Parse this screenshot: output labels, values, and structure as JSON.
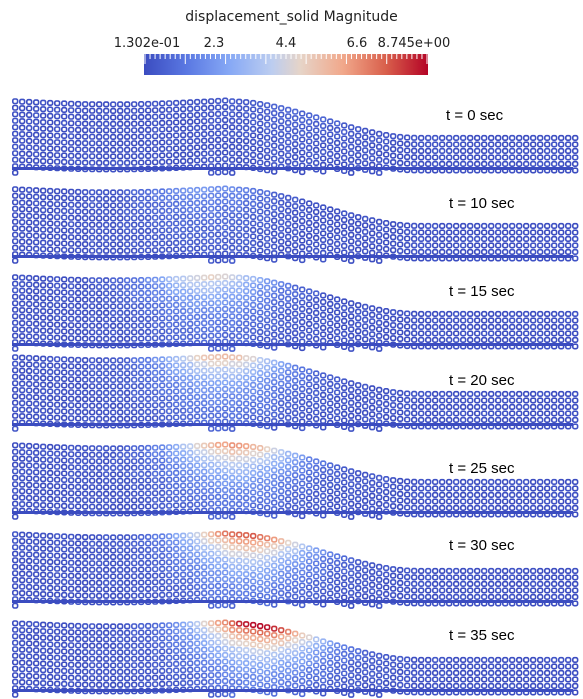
{
  "legend": {
    "title": "displacement_solid Magnitude",
    "min_label": "1.302e-01",
    "tick_2_3": "2.3",
    "tick_4_4": "4.4",
    "tick_6_6": "6.6",
    "max_label": "8.745e+00",
    "min": 0.1302,
    "max": 8.745,
    "colors": {
      "low": "#3b4cc0",
      "mid": "#dddddd",
      "high": "#b40426"
    }
  },
  "panels": [
    {
      "label": "t = 0 sec",
      "peak": 0.9,
      "peak_x": 0.5,
      "ridge": 0.05
    },
    {
      "label": "t = 10 sec",
      "peak": 2.2,
      "peak_x": 0.34,
      "ridge": 0.15
    },
    {
      "label": "t = 15 sec",
      "peak": 4.8,
      "peak_x": 0.35,
      "ridge": 0.25
    },
    {
      "label": "t = 20 sec",
      "peak": 5.6,
      "peak_x": 0.37,
      "ridge": 0.32
    },
    {
      "label": "t = 25 sec",
      "peak": 6.4,
      "peak_x": 0.39,
      "ridge": 0.4
    },
    {
      "label": "t = 30 sec",
      "peak": 7.6,
      "peak_x": 0.41,
      "ridge": 0.48
    },
    {
      "label": "t = 35 sec",
      "peak": 8.7,
      "peak_x": 0.43,
      "ridge": 0.55
    }
  ]
}
